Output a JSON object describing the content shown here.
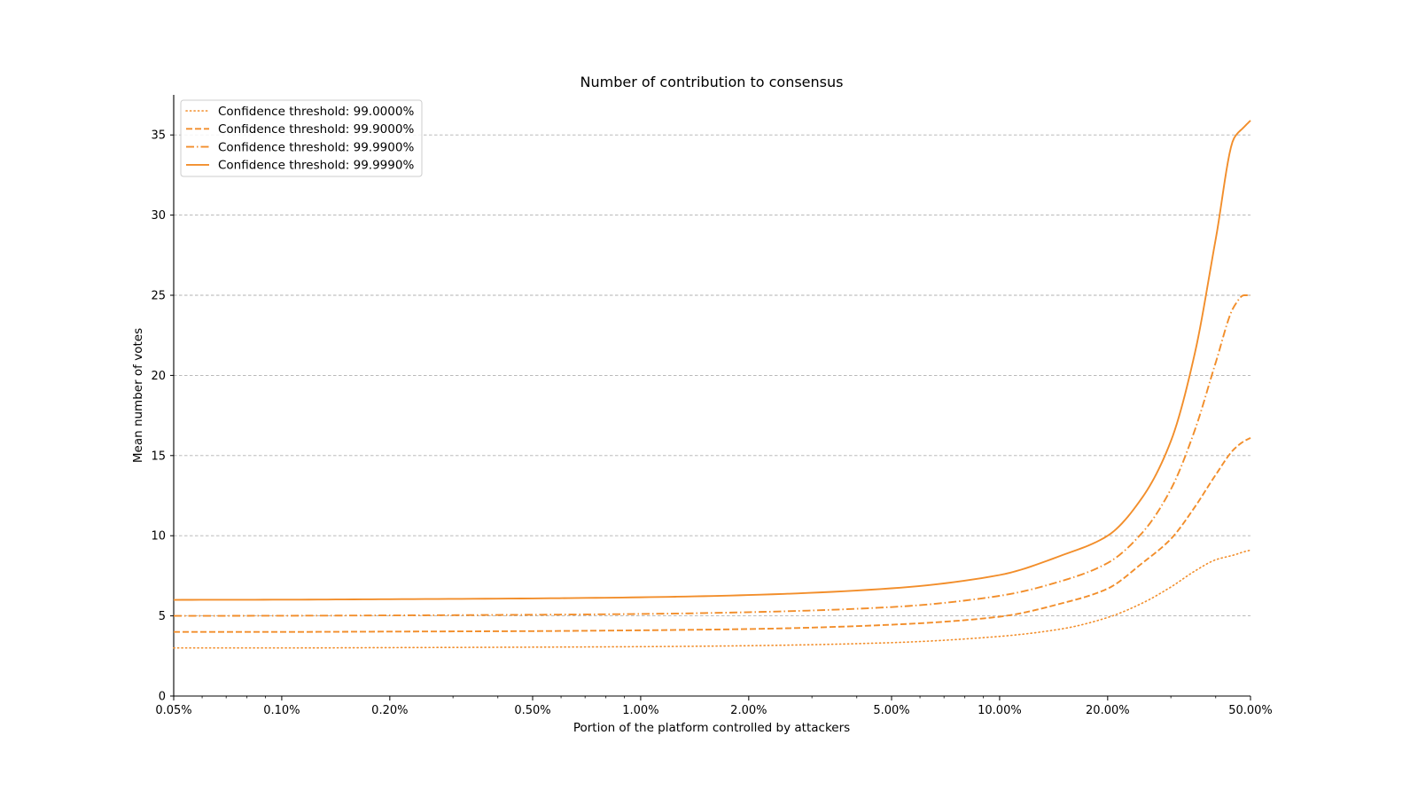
{
  "chart_data": {
    "type": "line",
    "title": "Number of contribution to consensus",
    "xlabel": "Portion of the platform controlled by attackers",
    "ylabel": "Mean number of votes",
    "x_scale": "log",
    "xlim": [
      0.05,
      50
    ],
    "ylim": [
      0,
      37.5
    ],
    "x_ticks": [
      0.05,
      0.1,
      0.2,
      0.5,
      1,
      2,
      5,
      10,
      20,
      50
    ],
    "x_tick_labels": [
      "0.05%",
      "0.10%",
      "0.20%",
      "0.50%",
      "1.00%",
      "2.00%",
      "5.00%",
      "10.00%",
      "20.00%",
      "50.00%"
    ],
    "y_ticks": [
      0,
      5,
      10,
      15,
      20,
      25,
      30,
      35
    ],
    "y_tick_labels": [
      "0",
      "5",
      "10",
      "15",
      "20",
      "25",
      "30",
      "35"
    ],
    "grid": "horizontal dashed",
    "legend_position": "top-left",
    "line_color": "#f28e2b",
    "x": [
      0.05,
      0.1,
      0.2,
      0.5,
      1,
      2,
      5,
      10,
      15,
      20,
      25,
      30,
      35,
      40,
      45,
      48,
      50
    ],
    "series": [
      {
        "name": "Confidence threshold: 99.0000%",
        "style": "dotted",
        "values": [
          3.0,
          3.0,
          3.02,
          3.05,
          3.08,
          3.14,
          3.33,
          3.72,
          4.2,
          4.9,
          5.8,
          6.8,
          7.8,
          8.5,
          8.8,
          9.0,
          9.1
        ]
      },
      {
        "name": "Confidence threshold: 99.9000%",
        "style": "dashed",
        "values": [
          4.0,
          4.0,
          4.02,
          4.05,
          4.1,
          4.18,
          4.45,
          4.95,
          5.8,
          6.7,
          8.3,
          9.8,
          11.8,
          13.8,
          15.4,
          15.9,
          16.1
        ]
      },
      {
        "name": "Confidence threshold: 99.9900%",
        "style": "dashdot",
        "values": [
          5.0,
          5.01,
          5.03,
          5.07,
          5.12,
          5.23,
          5.55,
          6.25,
          7.2,
          8.3,
          10.2,
          12.9,
          16.6,
          20.8,
          24.3,
          25.0,
          25.0
        ]
      },
      {
        "name": "Confidence threshold: 99.9990%",
        "style": "solid",
        "values": [
          6.0,
          6.01,
          6.04,
          6.09,
          6.16,
          6.3,
          6.72,
          7.55,
          8.8,
          10.0,
          12.4,
          15.9,
          21.4,
          28.5,
          34.8,
          35.5,
          35.9
        ]
      }
    ]
  }
}
